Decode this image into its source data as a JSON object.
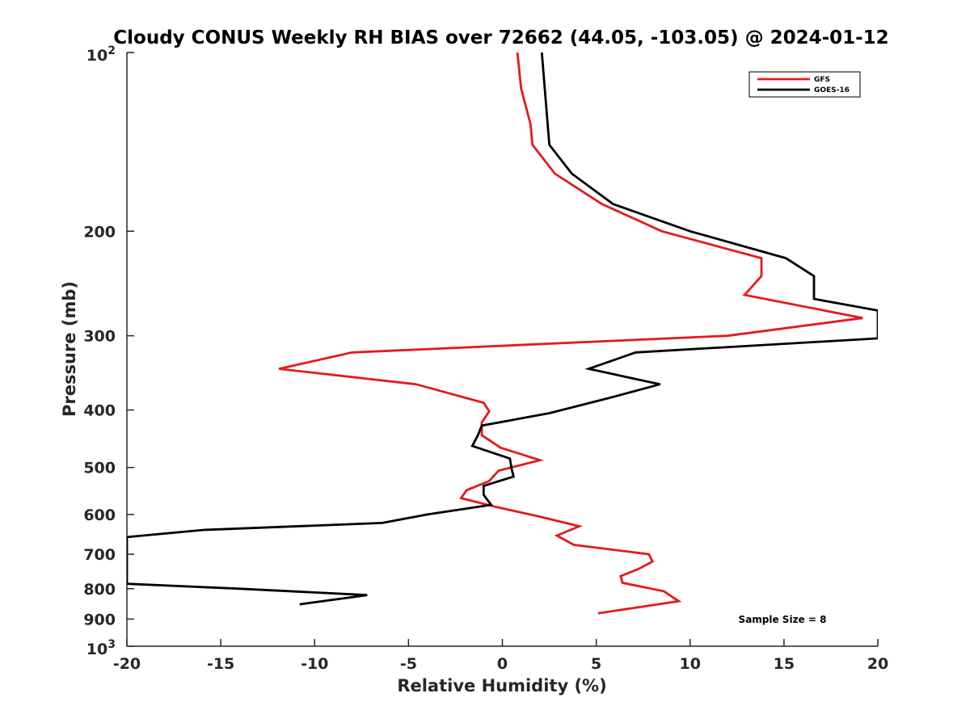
{
  "chart_data": {
    "type": "line",
    "title": "Cloudy CONUS Weekly RH BIAS over 72662 (44.05, -103.05) @ 2024-01-12",
    "xlabel": "Relative Humidity (%)",
    "ylabel": "Pressure (mb)",
    "xlim": [
      -20,
      20
    ],
    "ylim": [
      100,
      1000
    ],
    "y_scale": "log",
    "y_reversed": true,
    "x_ticks": [
      "-20",
      "-15",
      "-10",
      "-5",
      "0",
      "5",
      "10",
      "15",
      "20"
    ],
    "y_ticks": [
      {
        "value": 100,
        "base": "10",
        "exp": "2"
      },
      {
        "value": 200,
        "label": "200"
      },
      {
        "value": 300,
        "label": "300"
      },
      {
        "value": 400,
        "label": "400"
      },
      {
        "value": 500,
        "label": "500"
      },
      {
        "value": 600,
        "label": "600"
      },
      {
        "value": 700,
        "label": "700"
      },
      {
        "value": 800,
        "label": "800"
      },
      {
        "value": 900,
        "label": "900"
      },
      {
        "value": 1000,
        "base": "10",
        "exp": "3"
      }
    ],
    "legend_position": "top-right",
    "grid": false,
    "annotation": "Sample Size = 8",
    "series": [
      {
        "name": "GFS",
        "color": "#e41a1c",
        "points": [
          [
            0.8,
            100
          ],
          [
            1.0,
            115
          ],
          [
            1.5,
            132
          ],
          [
            1.6,
            143
          ],
          [
            2.8,
            160
          ],
          [
            5.3,
            180
          ],
          [
            8.5,
            200
          ],
          [
            13.8,
            222
          ],
          [
            13.8,
            238
          ],
          [
            12.9,
            256
          ],
          [
            19.2,
            280
          ],
          [
            12.0,
            300
          ],
          [
            -8.0,
            320
          ],
          [
            -11.9,
            341
          ],
          [
            -4.6,
            362
          ],
          [
            -1.0,
            389
          ],
          [
            -0.7,
            402
          ],
          [
            -1.1,
            420
          ],
          [
            -1.1,
            441
          ],
          [
            -0.1,
            463
          ],
          [
            2.0,
            486
          ],
          [
            -0.2,
            506
          ],
          [
            -0.7,
            527
          ],
          [
            -1.9,
            546
          ],
          [
            -2.2,
            563
          ],
          [
            -0.3,
            583
          ],
          [
            2.0,
            605
          ],
          [
            4.1,
            628
          ],
          [
            2.9,
            651
          ],
          [
            3.8,
            675
          ],
          [
            7.8,
            700
          ],
          [
            8.0,
            720
          ],
          [
            7.3,
            740
          ],
          [
            6.3,
            762
          ],
          [
            6.4,
            782
          ],
          [
            8.6,
            808
          ],
          [
            9.4,
            840
          ],
          [
            5.1,
            880
          ]
        ]
      },
      {
        "name": "GOES-16",
        "color": "#000000",
        "points": [
          [
            2.1,
            100
          ],
          [
            2.5,
            143
          ],
          [
            3.7,
            160
          ],
          [
            5.9,
            180
          ],
          [
            10.0,
            200
          ],
          [
            15.1,
            222
          ],
          [
            16.6,
            238
          ],
          [
            16.6,
            260
          ],
          [
            20.0,
            272
          ],
          [
            20.0,
            290
          ],
          [
            20.0,
            303
          ],
          [
            7.1,
            320
          ],
          [
            4.6,
            341
          ],
          [
            8.4,
            362
          ],
          [
            5.8,
            381
          ],
          [
            2.5,
            405
          ],
          [
            -1.1,
            425
          ],
          [
            -1.3,
            441
          ],
          [
            -1.6,
            460
          ],
          [
            0.4,
            483
          ],
          [
            0.5,
            504
          ],
          [
            0.6,
            518
          ],
          [
            -1.0,
            537
          ],
          [
            -1.0,
            556
          ],
          [
            -0.6,
            578
          ],
          [
            -4.0,
            600
          ],
          [
            -6.4,
            620
          ],
          [
            -15.9,
            637
          ],
          [
            -20.0,
            655
          ],
          [
            -20.0,
            785
          ],
          [
            -14.0,
            800
          ],
          [
            -7.2,
            820
          ],
          [
            -10.8,
            850
          ]
        ]
      }
    ]
  }
}
